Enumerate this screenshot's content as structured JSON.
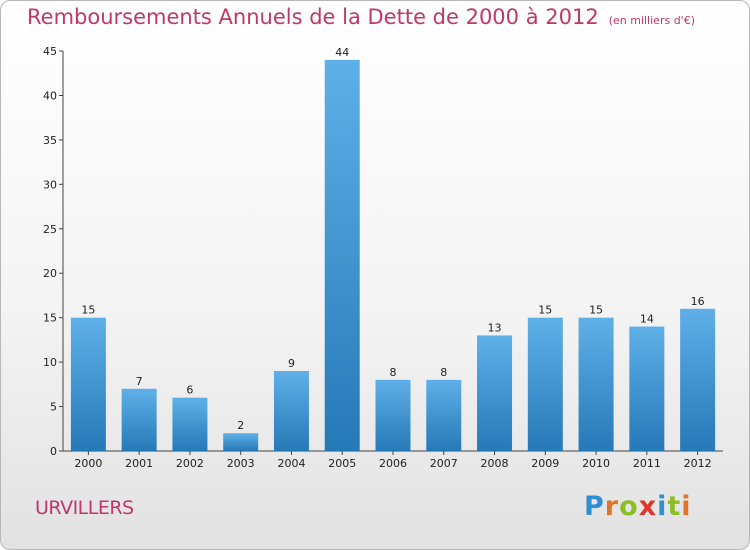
{
  "header": {
    "title": "Remboursements Annuels de la Dette de 2000 à 2012",
    "unit": "(en milliers d'€)"
  },
  "footer": {
    "city": "URVILLERS",
    "logo_text": "Proxiti"
  },
  "colors": {
    "title": "#c0386a",
    "bar_top": "#5fb0e8",
    "bar_bottom": "#2679b7",
    "logo": [
      "#2f8fd0",
      "#e0752a",
      "#8cbf26",
      "#e0352a",
      "#2f8fd0",
      "#8cbf26",
      "#e0752a"
    ]
  },
  "chart_data": {
    "type": "bar",
    "title": "Remboursements Annuels de la Dette de 2000 à 2012",
    "categories": [
      "2000",
      "2001",
      "2002",
      "2003",
      "2004",
      "2005",
      "2006",
      "2007",
      "2008",
      "2009",
      "2010",
      "2011",
      "2012"
    ],
    "values": [
      15,
      7,
      6,
      2,
      9,
      44,
      8,
      8,
      13,
      15,
      15,
      14,
      16
    ],
    "ylim": [
      0,
      45
    ],
    "yticks": [
      0,
      5,
      10,
      15,
      20,
      25,
      30,
      35,
      40,
      45
    ],
    "grid": false,
    "xlabel": "",
    "ylabel": ""
  }
}
